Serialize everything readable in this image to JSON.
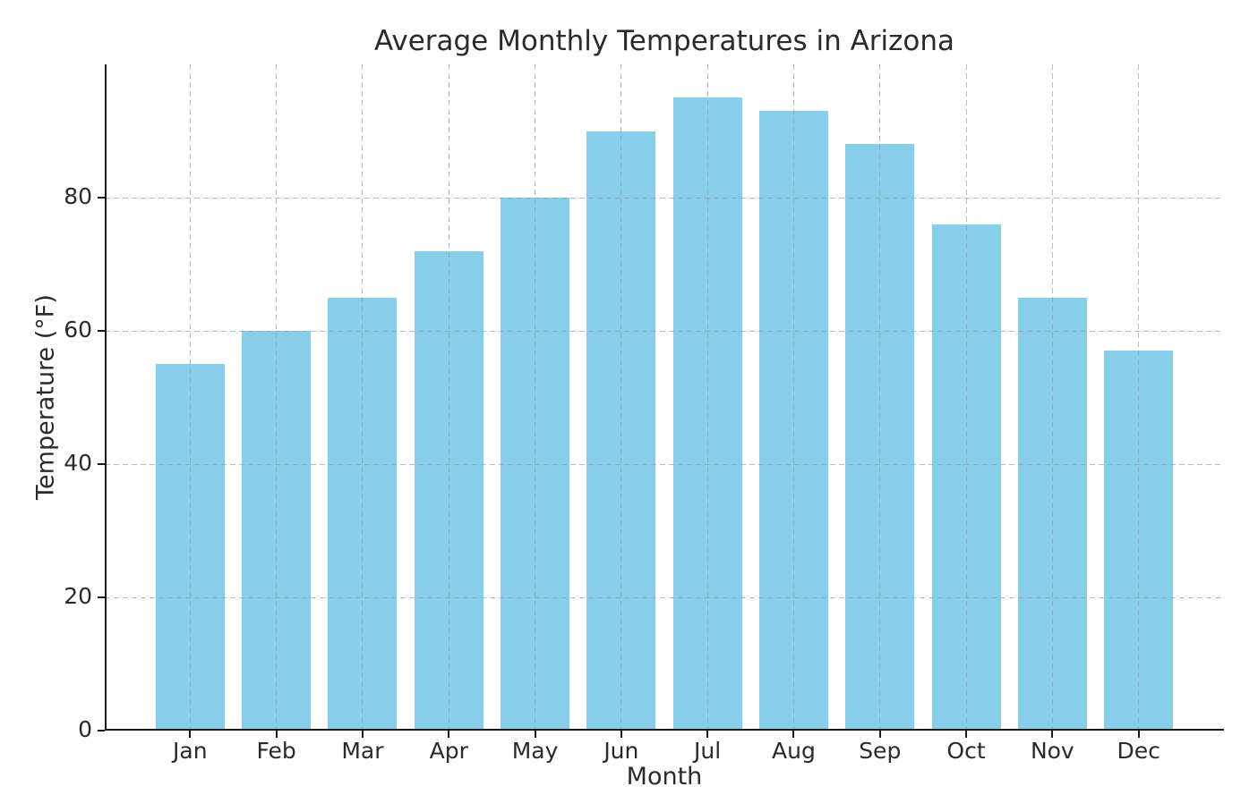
{
  "chart_data": {
    "type": "bar",
    "title": "Average Monthly Temperatures in Arizona",
    "xlabel": "Month",
    "ylabel": "Temperature (°F)",
    "categories": [
      "Jan",
      "Feb",
      "Mar",
      "Apr",
      "May",
      "Jun",
      "Jul",
      "Aug",
      "Sep",
      "Oct",
      "Nov",
      "Dec"
    ],
    "values": [
      55,
      60,
      65,
      72,
      80,
      90,
      95,
      93,
      88,
      76,
      65,
      57
    ],
    "ylim": [
      0,
      100
    ],
    "yticks": [
      0,
      20,
      40,
      60,
      80
    ],
    "bar_color": "#87CEEB",
    "axis_color": "#1a1a1a",
    "text_color": "#2a2a2a",
    "grid": "dashed",
    "grid_over_bars": true,
    "legend": "none"
  }
}
